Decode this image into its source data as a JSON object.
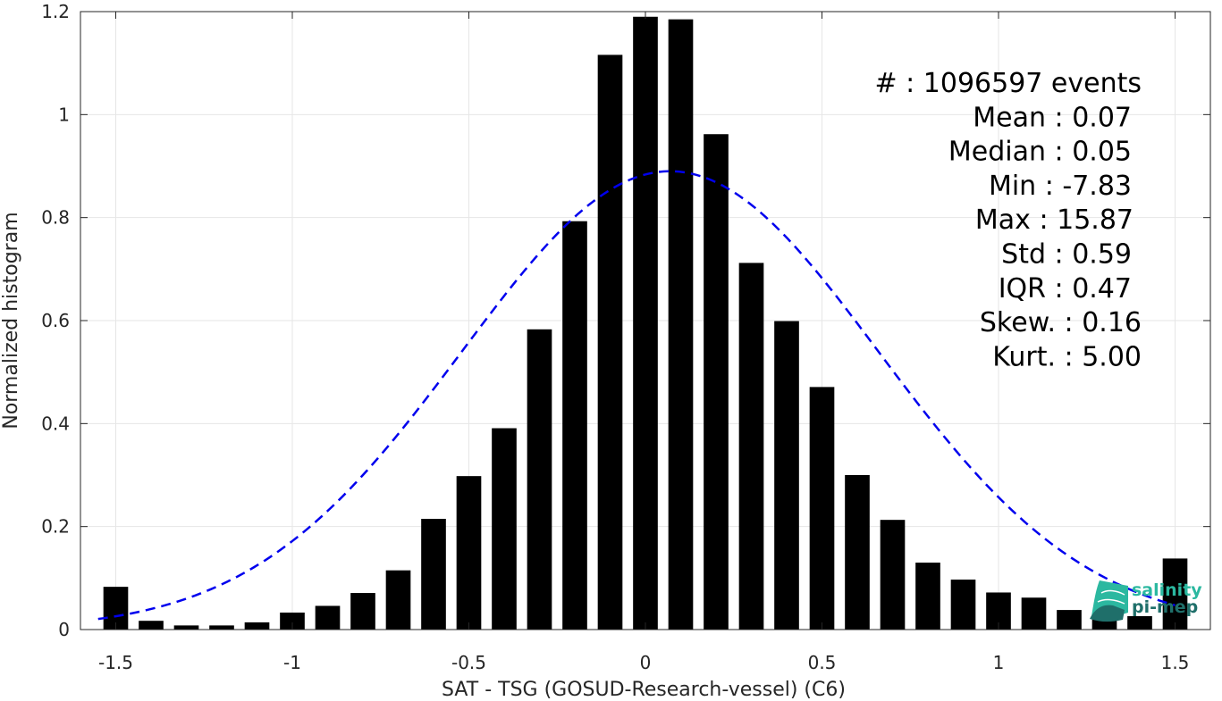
{
  "chart_data": {
    "type": "bar",
    "xlabel": "SAT - TSG (GOSUD-Research-vessel) (C6)",
    "ylabel": "Normalized histogram",
    "xlim": [
      -1.6,
      1.6
    ],
    "ylim": [
      0,
      1.2
    ],
    "xticks": [
      -1.5,
      -1,
      -0.5,
      0,
      0.5,
      1,
      1.5
    ],
    "xtick_labels": [
      "-1.5",
      "-1",
      "-0.5",
      "0",
      "0.5",
      "1",
      "1.5"
    ],
    "yticks": [
      0,
      0.2,
      0.4,
      0.6,
      0.8,
      1,
      1.2
    ],
    "ytick_labels": [
      "0",
      "0.2",
      "0.4",
      "0.6",
      "0.8",
      "1",
      "1.2"
    ],
    "grid": true,
    "bar_width": 0.07,
    "bar_color": "#000000",
    "x": [
      -1.5,
      -1.4,
      -1.3,
      -1.2,
      -1.1,
      -1.0,
      -0.9,
      -0.8,
      -0.7,
      -0.6,
      -0.5,
      -0.4,
      -0.3,
      -0.2,
      -0.1,
      0.0,
      0.1,
      0.2,
      0.3,
      0.4,
      0.5,
      0.6,
      0.7,
      0.8,
      0.9,
      1.0,
      1.1,
      1.2,
      1.3,
      1.4,
      1.5
    ],
    "values": [
      0.083,
      0.017,
      0.008,
      0.008,
      0.014,
      0.033,
      0.046,
      0.071,
      0.115,
      0.215,
      0.298,
      0.391,
      0.583,
      0.793,
      1.116,
      1.19,
      1.185,
      0.962,
      0.712,
      0.599,
      0.471,
      0.3,
      0.213,
      0.13,
      0.097,
      0.072,
      0.062,
      0.038,
      0.03,
      0.026,
      0.138
    ],
    "fit_curve": {
      "type": "normal",
      "mean": 0.07,
      "std": 0.59,
      "peak": 0.89,
      "x_range": [
        -1.55,
        1.5
      ],
      "color": "#0000ee",
      "style": "dashed"
    },
    "stats": [
      {
        "label": "#",
        "value": ": 1096597 events"
      },
      {
        "label": "Mean",
        "value": ": 0.07"
      },
      {
        "label": "Median",
        "value": ": 0.05"
      },
      {
        "label": "Min",
        "value": ": -7.83"
      },
      {
        "label": "Max",
        "value": ": 15.87"
      },
      {
        "label": "Std",
        "value": ": 0.59"
      },
      {
        "label": "IQR",
        "value": ": 0.47"
      },
      {
        "label": "Skew.",
        "value": ": 0.16"
      },
      {
        "label": "Kurt.",
        "value": ": 5.00"
      }
    ]
  },
  "logo": {
    "line1": "salinity",
    "line2": "pi-mep",
    "color1": "#2bb8a0",
    "color2": "#1f6f6a"
  }
}
